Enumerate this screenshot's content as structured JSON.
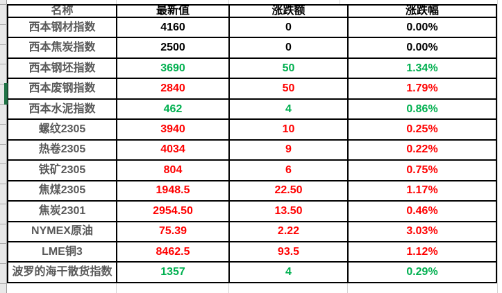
{
  "colors": {
    "neutral": "#000000",
    "red": "#ff0000",
    "green": "#00b050",
    "name_gray": "#595959",
    "selection_green": "#217346",
    "row_header_gray": "#e8e8e8",
    "gridline_gray": "#d4d4d4",
    "table_border": "#000000"
  },
  "table": {
    "headers": [
      "名称",
      "最新值",
      "涨跌额",
      "涨跌幅"
    ],
    "rows": [
      {
        "name": "西本钢材指数",
        "latest": "4160",
        "change": "0",
        "pct": "0.00%",
        "color": "neutral"
      },
      {
        "name": "西本焦炭指数",
        "latest": "2500",
        "change": "0",
        "pct": "0.00%",
        "color": "neutral"
      },
      {
        "name": "西本钢坯指数",
        "latest": "3690",
        "change": "50",
        "pct": "1.34%",
        "color": "green"
      },
      {
        "name": "西本废钢指数",
        "latest": "2840",
        "change": "50",
        "pct": "1.79%",
        "color": "red"
      },
      {
        "name": "西本水泥指数",
        "latest": "462",
        "change": "4",
        "pct": "0.86%",
        "color": "green"
      },
      {
        "name": "螺纹2305",
        "latest": "3940",
        "change": "10",
        "pct": "0.25%",
        "color": "red"
      },
      {
        "name": "热卷2305",
        "latest": "4034",
        "change": "9",
        "pct": "0.22%",
        "color": "red"
      },
      {
        "name": "铁矿2305",
        "latest": "804",
        "change": "6",
        "pct": "0.75%",
        "color": "red"
      },
      {
        "name": "焦煤2305",
        "latest": "1948.5",
        "change": "22.50",
        "pct": "1.17%",
        "color": "red"
      },
      {
        "name": "焦炭2301",
        "latest": "2954.50",
        "change": "13.50",
        "pct": "0.46%",
        "color": "red"
      },
      {
        "name": "NYMEX原油",
        "latest": "75.39",
        "change": "2.22",
        "pct": "3.03%",
        "color": "red"
      },
      {
        "name": "LME铜3",
        "latest": "8462.5",
        "change": "93.5",
        "pct": "1.12%",
        "color": "red"
      },
      {
        "name": "波罗的海干散货指数",
        "latest": "1357",
        "change": "4",
        "pct": "0.29%",
        "color": "green"
      }
    ]
  },
  "selection": {
    "selected_row_name": "西本废钢指数",
    "selected_row_index": 3
  }
}
